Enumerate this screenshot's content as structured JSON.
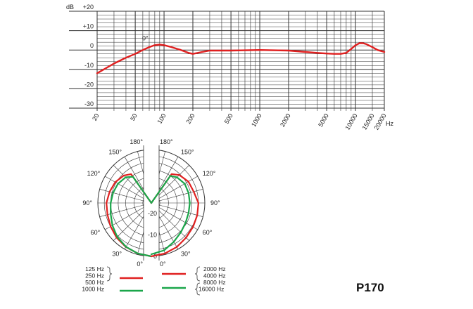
{
  "chart_data": [
    {
      "type": "line",
      "title": "",
      "xlabel": "Hz",
      "ylabel": "dB",
      "x_scale": "log",
      "xlim": [
        20,
        20000
      ],
      "ylim": [
        -30,
        20
      ],
      "grid": true,
      "x_ticks": [
        "20",
        "50",
        "100",
        "200",
        "500",
        "1000",
        "2000",
        "5000",
        "10000",
        "15000",
        "20000"
      ],
      "y_ticks": [
        "+20",
        "+10",
        "0",
        "-10",
        "-20",
        "-30"
      ],
      "annotation": "0°",
      "series": [
        {
          "color": "#e02020",
          "x": [
            20,
            30,
            40,
            50,
            60,
            70,
            80,
            90,
            100,
            120,
            150,
            180,
            200,
            250,
            300,
            500,
            1000,
            2000,
            3000,
            4000,
            5000,
            6000,
            7000,
            8000,
            9000,
            10000,
            11000,
            12000,
            13000,
            15000,
            17000,
            20000
          ],
          "y": [
            -12,
            -7,
            -4,
            -2,
            0,
            1.5,
            2.5,
            2.8,
            2.5,
            1.5,
            0,
            -1.5,
            -2,
            -1,
            -0.3,
            -0.3,
            0,
            -0.3,
            -1,
            -1.5,
            -1.8,
            -2,
            -2,
            -1.5,
            0.5,
            2.5,
            3.5,
            3.5,
            3,
            1.5,
            0,
            -1
          ]
        }
      ]
    },
    {
      "type": "polar",
      "title": "",
      "angle_labels": {
        "left": [
          "180°",
          "150°",
          "120°",
          "90°",
          "60°",
          "30°",
          "0°"
        ],
        "right": [
          "180°",
          "150°",
          "120°",
          "90°",
          "60°",
          "30°",
          "0°"
        ]
      },
      "radial_labels": [
        "-20",
        "-10",
        "0"
      ],
      "radial_range_db": [
        -25,
        0
      ],
      "series": [
        {
          "side": "left",
          "color": "#e02020",
          "frequencies": [
            "125 Hz",
            "250 Hz",
            "500 Hz"
          ],
          "angles_deg": [
            0,
            15,
            30,
            45,
            60,
            75,
            90,
            105,
            120,
            135,
            145,
            150
          ],
          "level_db": [
            0,
            -0.5,
            -1.2,
            -2,
            -3,
            -3.8,
            -4,
            -4.8,
            -5.5,
            -6.8,
            -8.5,
            -25
          ]
        },
        {
          "side": "left",
          "color": "#1aa64a",
          "frequencies": [
            "1000 Hz"
          ],
          "angles_deg": [
            0,
            15,
            30,
            45,
            60,
            75,
            90,
            105,
            120,
            135,
            145,
            150
          ],
          "level_db": [
            0,
            -0.5,
            -1.3,
            -2.5,
            -4,
            -5.3,
            -6,
            -6.5,
            -7,
            -8,
            -10,
            -25
          ]
        },
        {
          "side": "right",
          "color": "#e02020",
          "frequencies": [
            "2000 Hz",
            "4000 Hz",
            "8000 Hz"
          ],
          "angles_deg": [
            0,
            15,
            30,
            45,
            60,
            75,
            90,
            105,
            120,
            135,
            145,
            150
          ],
          "level_db": [
            0,
            -0.5,
            -1.2,
            -2,
            -2.5,
            -2.8,
            -3,
            -4.5,
            -5,
            -6.5,
            -8.5,
            -25
          ]
        },
        {
          "side": "right",
          "color": "#1aa64a",
          "frequencies": [
            "16000 Hz"
          ],
          "angles_deg": [
            0,
            15,
            30,
            45,
            60,
            75,
            90,
            105,
            120,
            135,
            145,
            150
          ],
          "level_db": [
            -1,
            -2,
            -4,
            -5.5,
            -6.5,
            -7,
            -7,
            -7,
            -7,
            -8,
            -9.5,
            -25
          ]
        }
      ]
    }
  ],
  "legend": {
    "left": {
      "red": [
        "125 Hz",
        "250 Hz",
        "500 Hz"
      ],
      "green": [
        "1000 Hz"
      ]
    },
    "right": {
      "red": [
        "2000 Hz",
        "4000 Hz",
        "8000 Hz"
      ],
      "green": [
        "16000 Hz"
      ]
    }
  },
  "model": "P170"
}
